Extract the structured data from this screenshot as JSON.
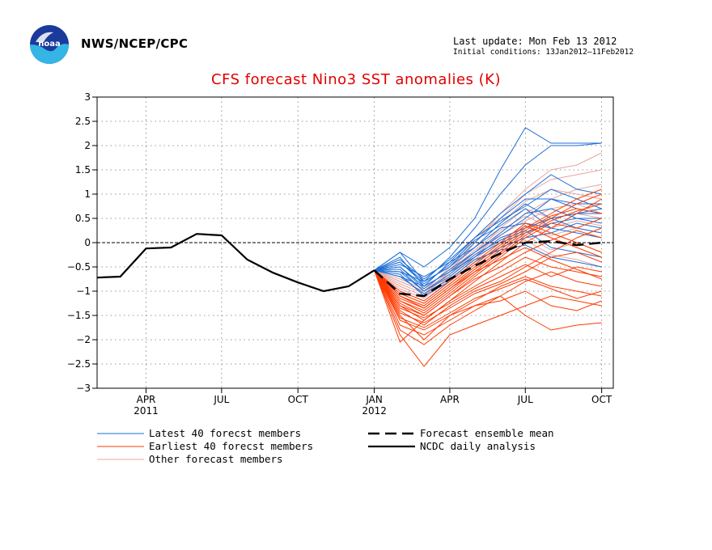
{
  "header": {
    "agency": "NWS/NCEP/CPC",
    "last_update": "Last update: Mon Feb 13 2012",
    "initial_conditions": "Initial conditions: 13Jan2012–11Feb2012"
  },
  "colors": {
    "latest": "#1f6fd6",
    "earliest": "#ff3a00",
    "other": "#e8a6a0",
    "mean": "#000000",
    "analysis": "#000000",
    "title": "#e00000"
  },
  "chart_data": {
    "type": "line",
    "title": "CFS forecast Nino3 SST anomalies (K)",
    "xlabel": "",
    "ylabel": "",
    "ylim": [
      -3,
      3
    ],
    "xlim": [
      "2011-02-01",
      "2012-10-15"
    ],
    "x_ticks": [
      {
        "date": "2011-04-01",
        "label": "APR",
        "year": "2011"
      },
      {
        "date": "2011-07-01",
        "label": "JUL",
        "year": ""
      },
      {
        "date": "2011-10-01",
        "label": "OCT",
        "year": ""
      },
      {
        "date": "2012-01-01",
        "label": "JAN",
        "year": "2012"
      },
      {
        "date": "2012-04-01",
        "label": "APR",
        "year": ""
      },
      {
        "date": "2012-07-01",
        "label": "JUL",
        "year": ""
      },
      {
        "date": "2012-10-01",
        "label": "OCT",
        "year": ""
      }
    ],
    "y_ticks": [
      3,
      2.5,
      2,
      1.5,
      1,
      0.5,
      0,
      -0.5,
      -1,
      -1.5,
      -2,
      -2.5,
      -3
    ],
    "grid": true,
    "zero_line": true,
    "legend": [
      {
        "label": "Latest 40 forecst members",
        "style": "latest"
      },
      {
        "label": "Earliest 40 forecst members",
        "style": "earliest"
      },
      {
        "label": "Other forecast members",
        "style": "other"
      },
      {
        "label": "Forecast ensemble mean",
        "style": "mean"
      },
      {
        "label": "NCDC daily analysis",
        "style": "analysis"
      }
    ],
    "forecast_dates": [
      "2012-01-01",
      "2012-02-01",
      "2012-03-01",
      "2012-04-01",
      "2012-05-01",
      "2012-06-01",
      "2012-07-01",
      "2012-08-01",
      "2012-09-01",
      "2012-10-01"
    ],
    "analysis": {
      "x": [
        "2011-02-01",
        "2011-03-01",
        "2011-04-01",
        "2011-05-01",
        "2011-06-01",
        "2011-07-01",
        "2011-08-01",
        "2011-09-01",
        "2011-10-01",
        "2011-11-01",
        "2011-12-01",
        "2012-01-01"
      ],
      "y": [
        -0.72,
        -0.7,
        -0.12,
        -0.1,
        0.18,
        0.15,
        -0.35,
        -0.62,
        -0.82,
        -1.0,
        -0.9,
        -0.57
      ]
    },
    "ensemble_mean": {
      "x": [
        "2012-01-01",
        "2012-02-01",
        "2012-03-01",
        "2012-04-01",
        "2012-05-01",
        "2012-06-01",
        "2012-07-01",
        "2012-08-01",
        "2012-09-01",
        "2012-10-01"
      ],
      "y": [
        -0.57,
        -1.05,
        -1.1,
        -0.75,
        -0.48,
        -0.22,
        0.0,
        0.03,
        -0.05,
        0.0
      ]
    },
    "members": {
      "latest": [
        [
          -0.57,
          -0.2,
          -0.5,
          -0.1,
          0.5,
          1.5,
          2.37,
          2.05,
          2.05,
          2.05
        ],
        [
          -0.57,
          -0.2,
          -0.8,
          -0.3,
          0.3,
          1.0,
          1.6,
          2.0,
          2.0,
          2.05
        ],
        [
          -0.57,
          -0.3,
          -0.9,
          -0.4,
          0.1,
          0.6,
          1.0,
          1.4,
          1.1,
          1.0
        ],
        [
          -0.57,
          -0.4,
          -0.8,
          -0.5,
          0.0,
          0.5,
          0.9,
          0.9,
          0.8,
          0.8
        ],
        [
          -0.57,
          -0.45,
          -0.7,
          -0.4,
          -0.1,
          0.4,
          0.8,
          0.5,
          0.6,
          0.7
        ],
        [
          -0.57,
          -0.5,
          -0.9,
          -0.6,
          -0.2,
          0.2,
          0.6,
          0.7,
          0.5,
          0.4
        ],
        [
          -0.57,
          -0.6,
          -0.8,
          -0.5,
          -0.1,
          0.3,
          0.4,
          0.3,
          0.6,
          0.6
        ],
        [
          -0.57,
          -0.55,
          -1.0,
          -0.7,
          -0.3,
          0.1,
          0.3,
          0.5,
          0.3,
          0.2
        ],
        [
          -0.57,
          -0.7,
          -0.9,
          -0.6,
          -0.3,
          0.0,
          0.2,
          0.4,
          0.5,
          0.5
        ],
        [
          -0.57,
          -0.65,
          -1.1,
          -0.8,
          -0.4,
          -0.1,
          0.1,
          0.2,
          0.4,
          0.3
        ],
        [
          -0.57,
          -0.5,
          -0.95,
          -0.55,
          -0.2,
          0.15,
          0.5,
          0.9,
          0.7,
          0.6
        ],
        [
          -0.57,
          -0.4,
          -0.85,
          -0.45,
          0.05,
          0.35,
          0.7,
          0.3,
          0.2,
          0.1
        ],
        [
          -0.57,
          -0.6,
          -1.0,
          -0.65,
          -0.25,
          0.05,
          0.25,
          -0.1,
          -0.2,
          -0.3
        ],
        [
          -0.57,
          -0.7,
          -1.05,
          -0.75,
          -0.35,
          -0.15,
          -0.05,
          -0.3,
          -0.4,
          -0.5
        ],
        [
          -0.57,
          -0.35,
          -0.75,
          -0.35,
          0.1,
          0.45,
          0.75,
          1.1,
          0.9,
          0.7
        ]
      ],
      "earliest": [
        [
          -0.57,
          -2.05,
          -1.6,
          -1.2,
          -0.8,
          -0.4,
          0.0,
          0.3,
          0.6,
          0.9
        ],
        [
          -0.57,
          -1.9,
          -2.55,
          -1.9,
          -1.7,
          -1.5,
          -1.3,
          -1.1,
          -1.2,
          -1.3
        ],
        [
          -0.57,
          -1.5,
          -2.0,
          -1.5,
          -1.3,
          -1.1,
          -1.5,
          -1.8,
          -1.7,
          -1.65
        ],
        [
          -0.57,
          -1.2,
          -1.4,
          -1.0,
          -0.6,
          -0.2,
          0.2,
          0.5,
          0.8,
          1.0
        ],
        [
          -0.57,
          -1.3,
          -1.6,
          -1.2,
          -0.9,
          -0.6,
          -0.3,
          -0.5,
          -0.6,
          -0.7
        ],
        [
          -0.57,
          -1.1,
          -1.3,
          -0.9,
          -0.5,
          -0.1,
          0.3,
          0.6,
          0.9,
          1.1
        ],
        [
          -0.57,
          -1.4,
          -1.7,
          -1.3,
          -1.0,
          -0.8,
          -0.5,
          -0.2,
          0.1,
          0.3
        ],
        [
          -0.57,
          -1.6,
          -1.8,
          -1.5,
          -1.2,
          -0.9,
          -0.7,
          -0.9,
          -1.0,
          -1.1
        ],
        [
          -0.57,
          -1.0,
          -1.2,
          -0.8,
          -0.4,
          0.0,
          0.4,
          0.2,
          0.0,
          -0.2
        ],
        [
          -0.57,
          -1.25,
          -1.5,
          -1.1,
          -0.7,
          -0.3,
          0.1,
          0.4,
          0.3,
          0.5
        ],
        [
          -0.57,
          -1.7,
          -1.9,
          -1.6,
          -1.3,
          -1.2,
          -1.0,
          -1.3,
          -1.4,
          -1.2
        ],
        [
          -0.57,
          -1.15,
          -1.35,
          -0.95,
          -0.55,
          -0.15,
          0.25,
          0.55,
          0.7,
          0.6
        ],
        [
          -0.57,
          -1.35,
          -1.55,
          -1.25,
          -0.95,
          -0.7,
          -0.45,
          -0.7,
          -0.5,
          -0.6
        ],
        [
          -0.57,
          -1.05,
          -1.25,
          -0.85,
          -0.45,
          -0.05,
          0.35,
          0.1,
          -0.1,
          -0.3
        ],
        [
          -0.57,
          -1.45,
          -1.65,
          -1.35,
          -1.05,
          -0.85,
          -0.6,
          -0.3,
          -0.2,
          -0.4
        ],
        [
          -0.57,
          -1.8,
          -2.1,
          -1.7,
          -1.4,
          -1.1,
          -0.8,
          -0.6,
          -0.8,
          -0.9
        ],
        [
          -0.57,
          -1.2,
          -1.45,
          -1.05,
          -0.65,
          -0.25,
          0.15,
          0.45,
          0.65,
          0.8
        ],
        [
          -0.57,
          -1.3,
          -1.5,
          -1.1,
          -0.75,
          -0.5,
          -0.2,
          0.05,
          0.25,
          0.1
        ],
        [
          -0.57,
          -1.1,
          -1.35,
          -0.95,
          -0.6,
          -0.35,
          -0.1,
          -0.35,
          -0.55,
          -0.75
        ],
        [
          -0.57,
          -1.55,
          -1.75,
          -1.45,
          -1.15,
          -0.95,
          -0.75,
          -0.95,
          -1.15,
          -1.0
        ]
      ],
      "other": [
        [
          -0.57,
          -0.9,
          -1.1,
          -0.6,
          0.0,
          0.6,
          1.1,
          1.5,
          1.6,
          1.85
        ],
        [
          -0.57,
          -0.8,
          -1.0,
          -0.5,
          0.1,
          0.5,
          1.0,
          1.3,
          1.4,
          1.5
        ],
        [
          -0.57,
          -1.0,
          -1.2,
          -0.8,
          -0.3,
          0.2,
          0.6,
          0.9,
          1.1,
          1.2
        ],
        [
          -0.57,
          -0.85,
          -1.05,
          -0.65,
          -0.2,
          0.3,
          0.7,
          0.5,
          0.6,
          0.5
        ],
        [
          -0.57,
          -0.95,
          -1.15,
          -0.75,
          -0.35,
          0.05,
          0.35,
          0.15,
          0.3,
          0.2
        ],
        [
          -0.57,
          -1.05,
          -1.25,
          -0.85,
          -0.45,
          -0.05,
          0.15,
          -0.15,
          0.0,
          -0.2
        ],
        [
          -0.57,
          -0.75,
          -0.95,
          -0.55,
          -0.1,
          0.4,
          0.85,
          1.1,
          1.0,
          0.9
        ],
        [
          -0.57,
          -0.9,
          -1.1,
          -0.7,
          -0.25,
          0.15,
          0.45,
          0.7,
          0.8,
          0.6
        ],
        [
          -0.57,
          -1.1,
          -1.3,
          -0.9,
          -0.55,
          -0.2,
          0.05,
          -0.25,
          -0.35,
          -0.5
        ],
        [
          -0.57,
          -0.8,
          -1.0,
          -0.6,
          -0.15,
          0.25,
          0.55,
          0.3,
          0.45,
          0.35
        ]
      ]
    }
  }
}
